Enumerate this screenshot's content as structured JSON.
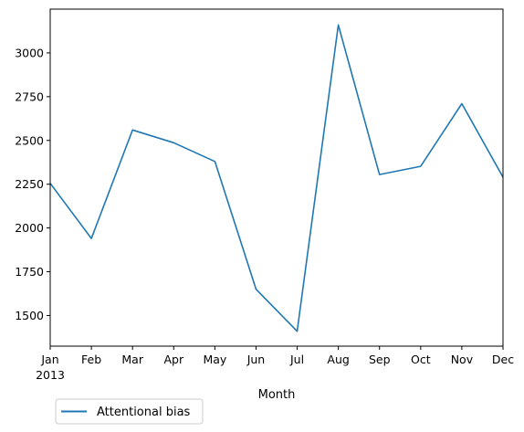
{
  "chart_data": {
    "type": "line",
    "title": "",
    "xlabel": "Month",
    "ylabel": "",
    "categories": [
      "Jan",
      "Feb",
      "Mar",
      "Apr",
      "May",
      "Jun",
      "Jul",
      "Aug",
      "Sep",
      "Oct",
      "Nov",
      "Dec"
    ],
    "year_label": "2013",
    "series": [
      {
        "name": "Attentional bias",
        "color": "#1f77b4",
        "values": [
          2255,
          1940,
          2560,
          2487,
          2380,
          1650,
          1410,
          3160,
          2305,
          2352,
          2710,
          2290
        ]
      }
    ],
    "ylim": [
      1325,
      3250
    ],
    "yticks": [
      1500,
      1750,
      2000,
      2250,
      2500,
      2750,
      3000
    ],
    "grid": false,
    "legend_position": "below-left"
  }
}
